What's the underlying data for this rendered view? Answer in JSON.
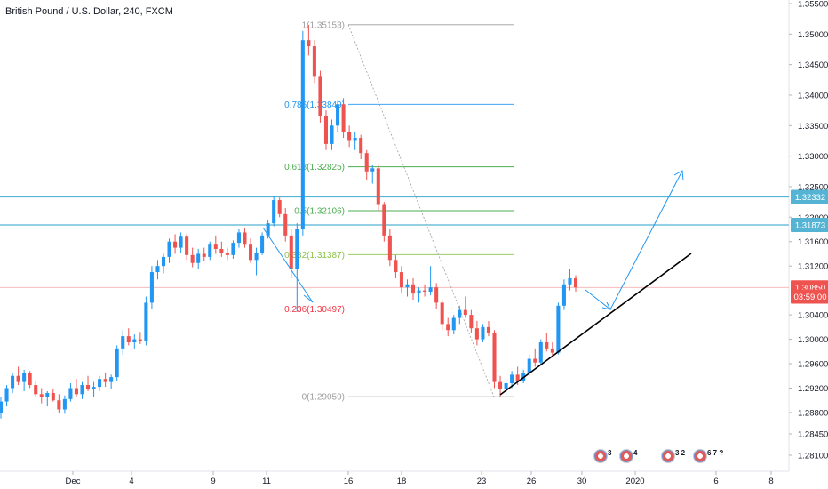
{
  "header": {
    "title": "British Pound / U.S. Dollar, 240, FXCM"
  },
  "colors": {
    "up": "#2196f3",
    "down": "#ef5350",
    "horizontal_level": "#55b4d4",
    "fib_1": "#9e9e9e",
    "fib_0786": "#2196f3",
    "fib_0618": "#4caf50",
    "fib_05": "#4caf50",
    "fib_0382": "#8bc34a",
    "fib_0236": "#f23645",
    "fib_0": "#9e9e9e",
    "trendline": "#000000",
    "arrow": "#2196f3",
    "price_line": "#f4a3a3"
  },
  "price_scale": {
    "ticks": [
      "1.35500",
      "1.35000",
      "1.34500",
      "1.34000",
      "1.33500",
      "1.33000",
      "1.32500",
      "1.32000",
      "1.31600",
      "1.31200",
      "1.30400",
      "1.30000",
      "1.29600",
      "1.29200",
      "1.28800",
      "1.28450",
      "1.28100"
    ],
    "labels": [
      {
        "text": "1.32332",
        "price": 1.32332,
        "bg": "#55b4d4"
      },
      {
        "text": "1.31873",
        "price": 1.31873,
        "bg": "#55b4d4"
      },
      {
        "text": "1.30850",
        "price": 1.3085,
        "bg": "#ef5350"
      },
      {
        "text": "03:59:00",
        "price": 1.307,
        "bg": "#ef5350"
      }
    ]
  },
  "time_scale": {
    "labels": [
      "Dec",
      "4",
      "9",
      "11",
      "16",
      "18",
      "23",
      "26",
      "30",
      "2020",
      "6",
      "8"
    ]
  },
  "events": [
    {
      "icon": "us-flag-icon",
      "text": "3"
    },
    {
      "icon": "us-flag-icon",
      "text": "4"
    },
    {
      "icon": "us-flag-icon",
      "text": "3 2"
    },
    {
      "icon": "us-flag-icon",
      "text": "6 7 ?"
    }
  ],
  "chart_data": {
    "type": "candlestick",
    "title": "British Pound / U.S. Dollar, 240, FXCM",
    "ylim": [
      1.2775,
      1.3575
    ],
    "horizontal_levels": [
      1.32332,
      1.31873
    ],
    "last_price": 1.3085,
    "fibonacci": [
      {
        "ratio": "1",
        "price": 1.35153,
        "label": "1(1.35153)"
      },
      {
        "ratio": "0.786",
        "price": 1.33849,
        "label": "0.786(1.33849)"
      },
      {
        "ratio": "0.618",
        "price": 1.32825,
        "label": "0.618(1.32825)"
      },
      {
        "ratio": "0.5",
        "price": 1.32106,
        "label": "0.5(1.32106)"
      },
      {
        "ratio": "0.382",
        "price": 1.31387,
        "label": "0.382(1.31387)"
      },
      {
        "ratio": "0.236",
        "price": 1.30497,
        "label": "0.236(1.30497)"
      },
      {
        "ratio": "0",
        "price": 1.29059,
        "label": "0(1.29059)"
      }
    ],
    "ohlc": [
      [
        1.288,
        1.2905,
        1.287,
        1.2898
      ],
      [
        1.2898,
        1.2925,
        1.289,
        1.292
      ],
      [
        1.292,
        1.2945,
        1.2912,
        1.294
      ],
      [
        1.294,
        1.2955,
        1.2925,
        1.293
      ],
      [
        1.293,
        1.295,
        1.2915,
        1.2945
      ],
      [
        1.2945,
        1.2948,
        1.292,
        1.2925
      ],
      [
        1.2925,
        1.2932,
        1.2905,
        1.291
      ],
      [
        1.291,
        1.292,
        1.2895,
        1.2905
      ],
      [
        1.2905,
        1.2915,
        1.289,
        1.2912
      ],
      [
        1.2912,
        1.2918,
        1.2898,
        1.29
      ],
      [
        1.29,
        1.291,
        1.288,
        1.2885
      ],
      [
        1.2885,
        1.2908,
        1.2878,
        1.2902
      ],
      [
        1.2902,
        1.2928,
        1.2898,
        1.292
      ],
      [
        1.292,
        1.2935,
        1.2905,
        1.291
      ],
      [
        1.291,
        1.293,
        1.2902,
        1.2925
      ],
      [
        1.2925,
        1.294,
        1.2915,
        1.2918
      ],
      [
        1.2918,
        1.293,
        1.2905,
        1.2922
      ],
      [
        1.2922,
        1.294,
        1.2915,
        1.2935
      ],
      [
        1.2935,
        1.2945,
        1.2922,
        1.293
      ],
      [
        1.293,
        1.2942,
        1.2918,
        1.2938
      ],
      [
        1.2938,
        1.299,
        1.2932,
        1.2985
      ],
      [
        1.2985,
        1.3015,
        1.2975,
        1.3005
      ],
      [
        1.3005,
        1.3018,
        1.299,
        1.2995
      ],
      [
        1.2995,
        1.3008,
        1.2985,
        1.3
      ],
      [
        1.3,
        1.3012,
        1.2992,
        1.2998
      ],
      [
        1.2998,
        1.307,
        1.299,
        1.306
      ],
      [
        1.306,
        1.312,
        1.305,
        1.311
      ],
      [
        1.311,
        1.313,
        1.3098,
        1.312
      ],
      [
        1.312,
        1.314,
        1.3108,
        1.3135
      ],
      [
        1.3135,
        1.3165,
        1.3125,
        1.316
      ],
      [
        1.316,
        1.3172,
        1.314,
        1.315
      ],
      [
        1.315,
        1.3175,
        1.3142,
        1.3168
      ],
      [
        1.3168,
        1.3172,
        1.313,
        1.3138
      ],
      [
        1.3138,
        1.315,
        1.3118,
        1.3125
      ],
      [
        1.3125,
        1.3148,
        1.3115,
        1.314
      ],
      [
        1.314,
        1.315,
        1.3128,
        1.3135
      ],
      [
        1.3135,
        1.316,
        1.313,
        1.3155
      ],
      [
        1.3155,
        1.317,
        1.314,
        1.3148
      ],
      [
        1.3148,
        1.316,
        1.3135,
        1.3142
      ],
      [
        1.3142,
        1.315,
        1.313,
        1.3138
      ],
      [
        1.3138,
        1.3162,
        1.3132,
        1.3158
      ],
      [
        1.3158,
        1.318,
        1.315,
        1.3175
      ],
      [
        1.3175,
        1.3182,
        1.315,
        1.3155
      ],
      [
        1.3155,
        1.3165,
        1.3125,
        1.313
      ],
      [
        1.313,
        1.315,
        1.3105,
        1.3142
      ],
      [
        1.3142,
        1.3175,
        1.3138,
        1.317
      ],
      [
        1.317,
        1.3195,
        1.3165,
        1.319
      ],
      [
        1.319,
        1.3235,
        1.3185,
        1.3228
      ],
      [
        1.3228,
        1.3232,
        1.32,
        1.3205
      ],
      [
        1.3205,
        1.3215,
        1.316,
        1.317
      ],
      [
        1.317,
        1.318,
        1.31,
        1.3115
      ],
      [
        1.3115,
        1.319,
        1.3045,
        1.318
      ],
      [
        1.318,
        1.3505,
        1.317,
        1.349
      ],
      [
        1.349,
        1.3515,
        1.3465,
        1.348
      ],
      [
        1.348,
        1.349,
        1.342,
        1.343
      ],
      [
        1.343,
        1.344,
        1.3355,
        1.3365
      ],
      [
        1.3365,
        1.3375,
        1.331,
        1.332
      ],
      [
        1.332,
        1.336,
        1.331,
        1.335
      ],
      [
        1.335,
        1.339,
        1.334,
        1.3385
      ],
      [
        1.3385,
        1.3395,
        1.333,
        1.334
      ],
      [
        1.334,
        1.335,
        1.3315,
        1.3325
      ],
      [
        1.3325,
        1.334,
        1.331,
        1.333
      ],
      [
        1.333,
        1.3335,
        1.3295,
        1.3305
      ],
      [
        1.3305,
        1.331,
        1.326,
        1.3275
      ],
      [
        1.3275,
        1.3285,
        1.3255,
        1.328
      ],
      [
        1.328,
        1.3285,
        1.321,
        1.322
      ],
      [
        1.322,
        1.3225,
        1.316,
        1.317
      ],
      [
        1.317,
        1.318,
        1.312,
        1.313
      ],
      [
        1.313,
        1.3138,
        1.31,
        1.311
      ],
      [
        1.311,
        1.312,
        1.3075,
        1.3085
      ],
      [
        1.3085,
        1.3098,
        1.307,
        1.309
      ],
      [
        1.309,
        1.31,
        1.3065,
        1.3075
      ],
      [
        1.3075,
        1.3085,
        1.306,
        1.308
      ],
      [
        1.308,
        1.309,
        1.307,
        1.3078
      ],
      [
        1.3078,
        1.312,
        1.3072,
        1.3085
      ],
      [
        1.3085,
        1.3092,
        1.305,
        1.306
      ],
      [
        1.306,
        1.3065,
        1.3015,
        1.3025
      ],
      [
        1.3025,
        1.3035,
        1.3005,
        1.3015
      ],
      [
        1.3015,
        1.304,
        1.3008,
        1.3035
      ],
      [
        1.3035,
        1.3055,
        1.3025,
        1.3048
      ],
      [
        1.3048,
        1.307,
        1.3035,
        1.304
      ],
      [
        1.304,
        1.3048,
        1.301,
        1.3018
      ],
      [
        1.3018,
        1.303,
        1.299,
        1.3
      ],
      [
        1.3,
        1.3025,
        1.2995,
        1.302
      ],
      [
        1.302,
        1.303,
        1.3005,
        1.301
      ],
      [
        1.301,
        1.3015,
        1.292,
        1.293
      ],
      [
        1.293,
        1.294,
        1.2905,
        1.2918
      ],
      [
        1.2918,
        1.2935,
        1.291,
        1.2928
      ],
      [
        1.2928,
        1.2948,
        1.292,
        1.2942
      ],
      [
        1.2942,
        1.2955,
        1.2925,
        1.2932
      ],
      [
        1.2932,
        1.295,
        1.2928,
        1.2945
      ],
      [
        1.2945,
        1.2975,
        1.294,
        1.2968
      ],
      [
        1.2968,
        1.2985,
        1.2955,
        1.2962
      ],
      [
        1.2962,
        1.3,
        1.2958,
        1.2995
      ],
      [
        1.2995,
        1.301,
        1.298,
        1.2985
      ],
      [
        1.2985,
        1.2995,
        1.297,
        1.2978
      ],
      [
        1.2978,
        1.306,
        1.2975,
        1.3055
      ],
      [
        1.3055,
        1.3098,
        1.3048,
        1.309
      ],
      [
        1.309,
        1.3115,
        1.308,
        1.31
      ],
      [
        1.31,
        1.3105,
        1.3078,
        1.3085
      ]
    ]
  }
}
